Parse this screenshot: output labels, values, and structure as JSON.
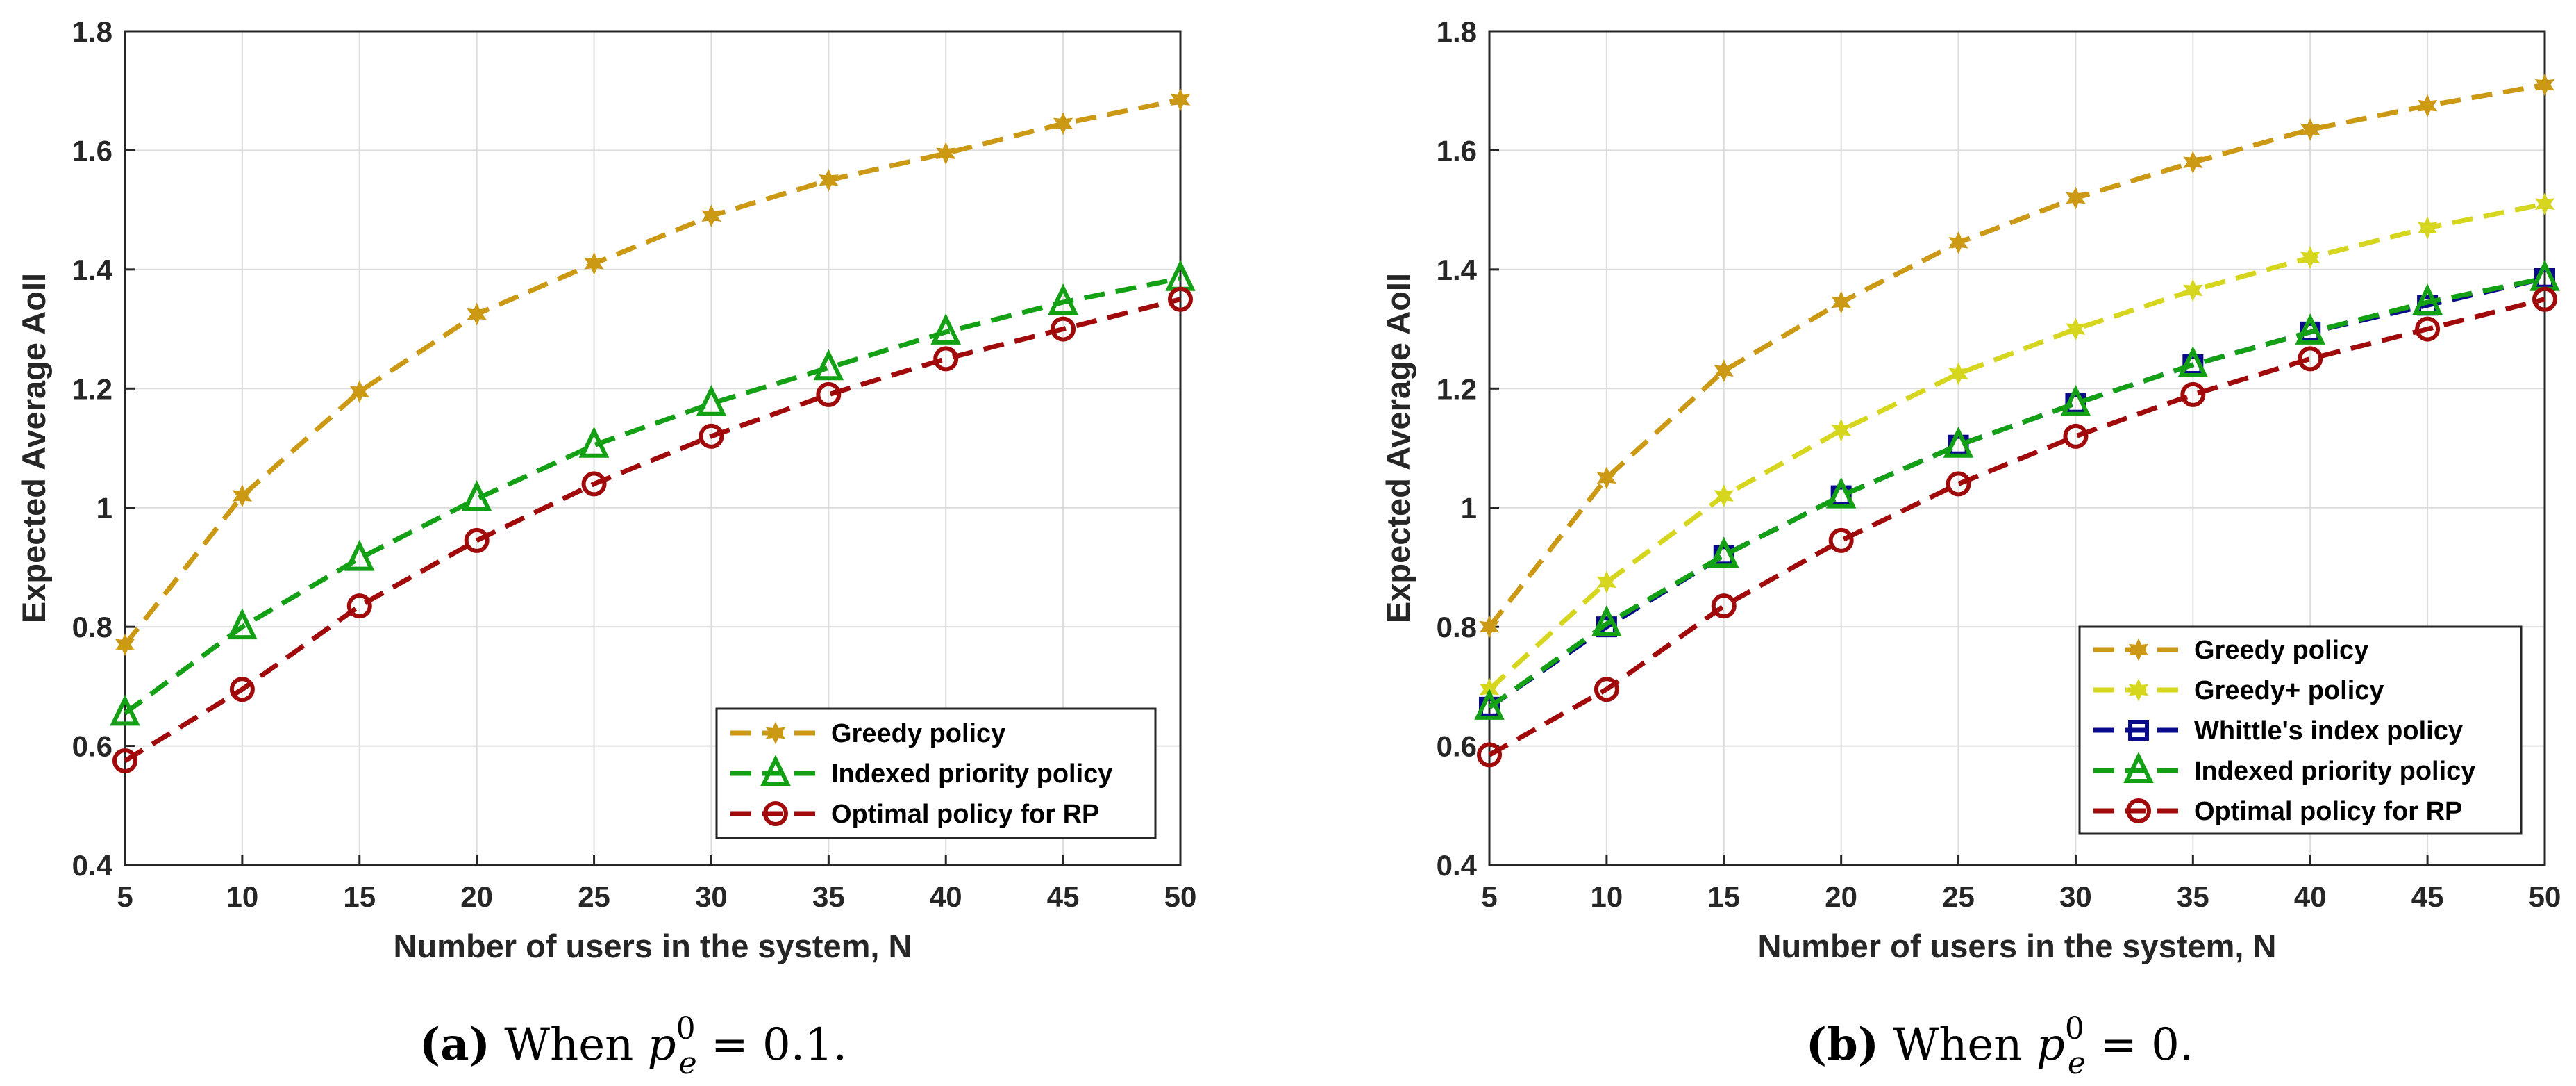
{
  "colors": {
    "greedy": "#CC9914",
    "greedy_plus": "#D6D61F",
    "whittle": "#0A0A8C",
    "indexed": "#14A014",
    "optimal": "#A00A0A",
    "grid": "#DCDCDC",
    "axis": "#262626"
  },
  "chart_data": [
    {
      "type": "line",
      "xlabel": "Number of users in the system, N",
      "ylabel": "Expected Average AoII",
      "xlim": [
        5,
        50
      ],
      "ylim": [
        0.4,
        1.8
      ],
      "xticks": [
        5,
        10,
        15,
        20,
        25,
        30,
        35,
        40,
        45,
        50
      ],
      "yticks": [
        0.4,
        0.6,
        0.8,
        1,
        1.2,
        1.4,
        1.6,
        1.8
      ],
      "ytick_labels": [
        "0.4",
        "0.6",
        "0.8",
        "1",
        "1.2",
        "1.4",
        "1.6",
        "1.8"
      ],
      "grid": true,
      "legend_position": "bottom-right",
      "x": [
        5,
        10,
        15,
        20,
        25,
        30,
        35,
        40,
        45,
        50
      ],
      "series": [
        {
          "name": "Greedy policy",
          "marker": "star",
          "color_key": "greedy",
          "values": [
            0.77,
            1.02,
            1.195,
            1.325,
            1.41,
            1.49,
            1.55,
            1.595,
            1.645,
            1.685
          ]
        },
        {
          "name": "Indexed priority policy",
          "marker": "triangle",
          "color_key": "indexed",
          "values": [
            0.655,
            0.8,
            0.915,
            1.015,
            1.105,
            1.175,
            1.235,
            1.295,
            1.345,
            1.385
          ]
        },
        {
          "name": "Optimal policy for RP",
          "marker": "circle",
          "color_key": "optimal",
          "values": [
            0.575,
            0.695,
            0.835,
            0.945,
            1.04,
            1.12,
            1.19,
            1.25,
            1.3,
            1.35
          ]
        }
      ],
      "caption": {
        "label": "(a)",
        "prefix": "When",
        "formula_base": "p",
        "formula_sub": "e",
        "formula_sup": "0",
        "formula_eq": "= 0.1."
      }
    },
    {
      "type": "line",
      "xlabel": "Number of users in the system, N",
      "ylabel": "Expected Average AoII",
      "xlim": [
        5,
        50
      ],
      "ylim": [
        0.4,
        1.8
      ],
      "xticks": [
        5,
        10,
        15,
        20,
        25,
        30,
        35,
        40,
        45,
        50
      ],
      "yticks": [
        0.4,
        0.6,
        0.8,
        1,
        1.2,
        1.4,
        1.6,
        1.8
      ],
      "ytick_labels": [
        "0.4",
        "0.6",
        "0.8",
        "1",
        "1.2",
        "1.4",
        "1.6",
        "1.8"
      ],
      "grid": true,
      "legend_position": "bottom-right",
      "x": [
        5,
        10,
        15,
        20,
        25,
        30,
        35,
        40,
        45,
        50
      ],
      "series": [
        {
          "name": "Greedy policy",
          "marker": "star",
          "color_key": "greedy",
          "values": [
            0.8,
            1.05,
            1.23,
            1.345,
            1.445,
            1.52,
            1.58,
            1.635,
            1.675,
            1.71
          ]
        },
        {
          "name": "Greedy+ policy",
          "marker": "star",
          "color_key": "greedy_plus",
          "values": [
            0.695,
            0.875,
            1.02,
            1.13,
            1.225,
            1.3,
            1.365,
            1.42,
            1.47,
            1.51
          ]
        },
        {
          "name": "Whittle's index policy",
          "marker": "square",
          "color_key": "whittle",
          "values": [
            0.665,
            0.8,
            0.92,
            1.02,
            1.105,
            1.175,
            1.24,
            1.295,
            1.34,
            1.385
          ]
        },
        {
          "name": "Indexed priority policy",
          "marker": "triangle",
          "color_key": "indexed",
          "values": [
            0.665,
            0.805,
            0.92,
            1.02,
            1.105,
            1.175,
            1.24,
            1.295,
            1.345,
            1.385
          ]
        },
        {
          "name": "Optimal policy for RP",
          "marker": "circle",
          "color_key": "optimal",
          "values": [
            0.585,
            0.695,
            0.835,
            0.945,
            1.04,
            1.12,
            1.19,
            1.25,
            1.3,
            1.35
          ]
        }
      ],
      "caption": {
        "label": "(b)",
        "prefix": "When",
        "formula_base": "p",
        "formula_sub": "e",
        "formula_sup": "0",
        "formula_eq": "= 0."
      }
    }
  ]
}
